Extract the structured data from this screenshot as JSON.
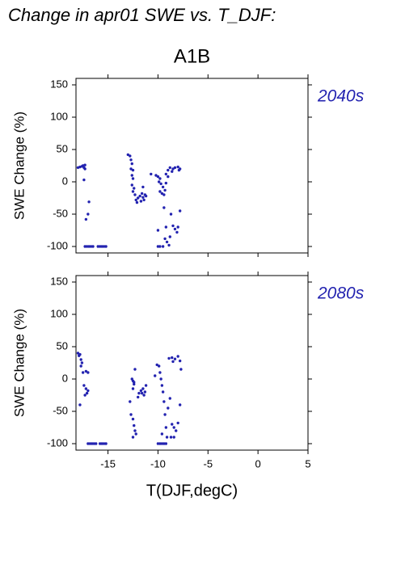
{
  "title": "Change in apr01 SWE vs. T_DJF:",
  "chart_data": [
    {
      "type": "scatter",
      "title": "A1B",
      "annotation": "2040s",
      "ylabel": "SWE Change (%)",
      "color": "#2323b0",
      "xlim": [
        -18.2,
        5
      ],
      "xticks": [
        -15,
        -10,
        -5,
        0,
        5
      ],
      "show_xtick_labels": false,
      "ylim": [
        -110,
        160
      ],
      "yticks": [
        -100,
        -50,
        0,
        50,
        100,
        150
      ],
      "x": [
        -18.0,
        -17.8,
        -17.6,
        -17.5,
        -17.4,
        -17.3,
        -17.3,
        -17.4,
        -16.9,
        -17.0,
        -17.2,
        -17.3,
        -17.1,
        -16.9,
        -16.7,
        -16.5,
        -16.0,
        -15.8,
        -15.6,
        -15.4,
        -15.2,
        -13.0,
        -12.8,
        -12.7,
        -12.6,
        -12.7,
        -12.5,
        -12.6,
        -12.5,
        -12.6,
        -12.4,
        -12.5,
        -12.3,
        -12.2,
        -12.1,
        -12.0,
        -11.8,
        -11.6,
        -11.5,
        -11.3,
        -11.4,
        -11.7,
        -11.2,
        -11.5,
        -10.7,
        -10.2,
        -10.0,
        -9.8,
        -9.9,
        -9.7,
        -9.5,
        -9.8,
        -9.6,
        -9.4,
        -9.3,
        -9.2,
        -9.0,
        -9.2,
        -10.0,
        -10.0,
        -9.8,
        -9.5,
        -9.3,
        -9.1,
        -8.9,
        -8.8,
        -9.2,
        -8.7,
        -8.5,
        -8.3,
        -8.0,
        -8.1,
        -7.8,
        -9.0,
        -8.8,
        -8.5,
        -8.3,
        -8.0,
        -7.8,
        -7.9,
        -8.6,
        -9.4
      ],
      "values": [
        22,
        23,
        24,
        25,
        22,
        26,
        20,
        3,
        -31,
        -50,
        -58,
        -100,
        -100,
        -100,
        -100,
        -100,
        -100,
        -100,
        -100,
        -100,
        -100,
        42,
        40,
        34,
        28,
        20,
        18,
        10,
        5,
        -5,
        -10,
        -15,
        -20,
        -28,
        -32,
        -25,
        -22,
        -18,
        -24,
        -20,
        -28,
        -30,
        -22,
        -8,
        12,
        10,
        8,
        5,
        0,
        -3,
        -8,
        -15,
        -18,
        -20,
        -13,
        -2,
        8,
        12,
        -75,
        -100,
        -100,
        -100,
        -88,
        -93,
        -98,
        -85,
        -70,
        -50,
        -68,
        -73,
        -70,
        -78,
        -45,
        18,
        22,
        20,
        22,
        23,
        20,
        18,
        16,
        -40
      ]
    },
    {
      "type": "scatter",
      "annotation": "2080s",
      "ylabel": "SWE Change (%)",
      "xlabel": "T(DJF,degC)",
      "color": "#2323b0",
      "xlim": [
        -18.2,
        5
      ],
      "xticks": [
        -15,
        -10,
        -5,
        0,
        5
      ],
      "show_xtick_labels": true,
      "ylim": [
        -110,
        160
      ],
      "yticks": [
        -100,
        -50,
        0,
        50,
        100,
        150
      ],
      "x": [
        -18.0,
        -17.9,
        -17.8,
        -17.7,
        -17.6,
        -17.7,
        -17.5,
        -17.2,
        -17.0,
        -17.4,
        -17.2,
        -17.0,
        -17.1,
        -17.3,
        -17.8,
        -17.0,
        -16.8,
        -16.6,
        -16.4,
        -16.2,
        -15.8,
        -15.6,
        -15.4,
        -15.2,
        -12.8,
        -12.6,
        -12.5,
        -12.4,
        -12.5,
        -12.3,
        -12.4,
        -12.7,
        -12.5,
        -12.4,
        -12.3,
        -12.2,
        -12.5,
        -12.0,
        -11.9,
        -11.7,
        -11.5,
        -11.3,
        -11.4,
        -11.6,
        -11.2,
        -10.3,
        -10.1,
        -9.9,
        -9.8,
        -9.7,
        -9.6,
        -9.5,
        -9.4,
        -9.3,
        -9.2,
        -9.1,
        -10.0,
        -9.8,
        -9.6,
        -9.4,
        -9.2,
        -9.6,
        -9.0,
        -8.8,
        -8.6,
        -8.4,
        -8.2,
        -8.0,
        -7.8,
        -8.9,
        -8.6,
        -8.3,
        -8.0,
        -7.8,
        -8.5,
        -7.7,
        -8.7,
        -8.4
      ],
      "values": [
        40,
        36,
        38,
        30,
        25,
        20,
        10,
        12,
        10,
        -10,
        -15,
        -18,
        -22,
        -25,
        -40,
        -100,
        -100,
        -100,
        -100,
        -100,
        -100,
        -100,
        -100,
        -100,
        -35,
        0,
        -3,
        -8,
        -15,
        15,
        -5,
        -55,
        -62,
        -72,
        -80,
        -85,
        -90,
        -28,
        -22,
        -18,
        -15,
        -20,
        -25,
        -22,
        -10,
        5,
        22,
        20,
        10,
        0,
        -10,
        -20,
        -35,
        -55,
        -75,
        -90,
        -100,
        -100,
        -100,
        -100,
        -100,
        -85,
        -45,
        -30,
        -70,
        -75,
        -80,
        -68,
        -40,
        32,
        33,
        31,
        35,
        28,
        27,
        15,
        -90,
        -90
      ]
    }
  ]
}
